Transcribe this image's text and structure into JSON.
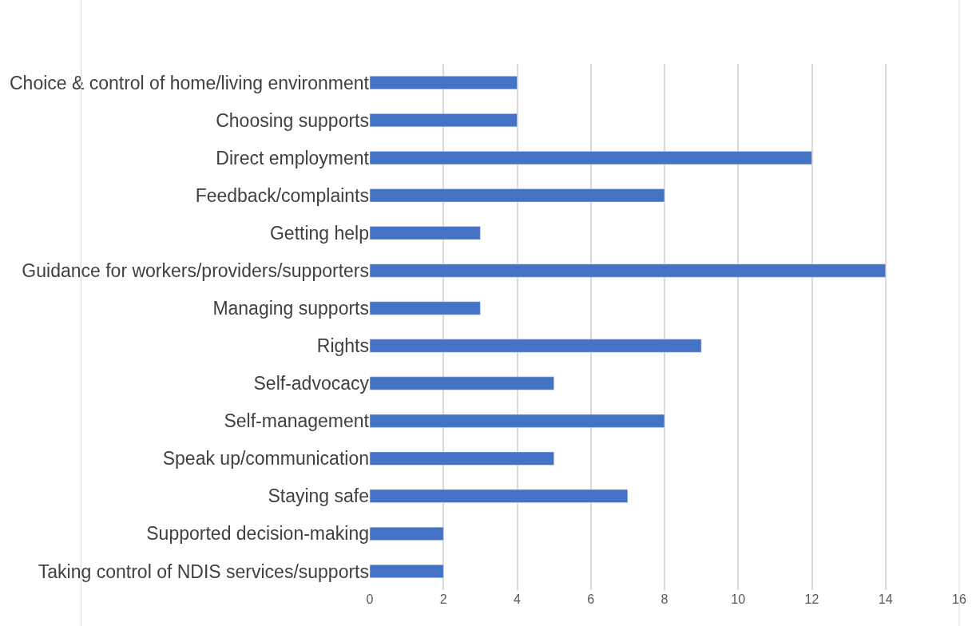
{
  "chart_data": {
    "type": "bar",
    "orientation": "horizontal",
    "categories": [
      "Choice & control of home/living environment",
      "Choosing supports",
      "Direct employment",
      "Feedback/complaints",
      "Getting help",
      "Guidance for workers/providers/supporters",
      "Managing supports",
      "Rights",
      "Self-advocacy",
      "Self-management",
      "Speak up/communication",
      "Staying safe",
      "Supported decision-making",
      "Taking control of NDIS services/supports"
    ],
    "values": [
      4,
      4,
      12,
      8,
      3,
      14,
      3,
      9,
      5,
      8,
      5,
      7,
      2,
      2
    ],
    "color": "#4472c4",
    "xlim": [
      0,
      16
    ],
    "xticks": [
      0,
      2,
      4,
      6,
      8,
      10,
      12,
      14,
      16
    ],
    "grid": "x",
    "legend": false
  }
}
